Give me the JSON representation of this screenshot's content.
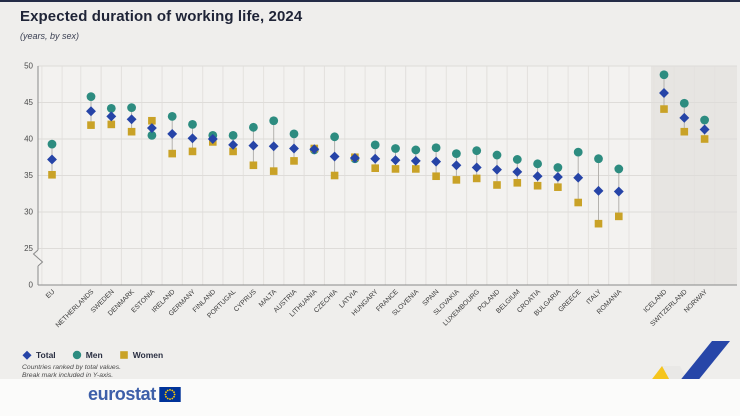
{
  "header": {
    "title": "Expected duration of working life, 2024",
    "subtitle": "(years, by sex)"
  },
  "legend": [
    {
      "key": "total",
      "label": "Total"
    },
    {
      "key": "men",
      "label": "Men"
    },
    {
      "key": "women",
      "label": "Women"
    }
  ],
  "footnotes": [
    "Countries ranked by total values.",
    "Break mark included in Y-axis."
  ],
  "branding": {
    "logo_text": "eurostat"
  },
  "colors": {
    "total": "#2644a7",
    "men": "#2d8c80",
    "women": "#c9a227",
    "grid": "#dedcd9",
    "vgrid": "#e4e2df",
    "axis": "#8a8a8a",
    "tick_text": "#4a4a4a",
    "label_text": "#3a3a3a",
    "connector": "#b4b2ae",
    "plot_bg": "#f3f2f0",
    "efta_band": "#e7e5e2"
  },
  "chart_data": {
    "type": "scatter",
    "title": "Expected duration of working life, 2024",
    "subtitle": "(years, by sex)",
    "ylabel": "years",
    "yticks": [
      0,
      25,
      30,
      35,
      40,
      45,
      50
    ],
    "ylim": [
      0,
      50
    ],
    "ylim_display": [
      25,
      50
    ],
    "axis_break": true,
    "grid": true,
    "legend_position": "bottom-left",
    "series_names": [
      "Total",
      "Men",
      "Women"
    ],
    "groups": [
      {
        "name": "EU",
        "region": "eu",
        "total": 37.2,
        "men": 39.3,
        "women": 35.1
      },
      {
        "name": "NETHERLANDS",
        "region": "member",
        "total": 43.8,
        "men": 45.8,
        "women": 41.9
      },
      {
        "name": "SWEDEN",
        "region": "member",
        "total": 43.1,
        "men": 44.2,
        "women": 42.0
      },
      {
        "name": "DENMARK",
        "region": "member",
        "total": 42.7,
        "men": 44.3,
        "women": 41.0
      },
      {
        "name": "ESTONIA",
        "region": "member",
        "total": 41.5,
        "men": 40.5,
        "women": 42.5
      },
      {
        "name": "IRELAND",
        "region": "member",
        "total": 40.7,
        "men": 43.1,
        "women": 38.0
      },
      {
        "name": "GERMANY",
        "region": "member",
        "total": 40.1,
        "men": 42.0,
        "women": 38.3
      },
      {
        "name": "FINLAND",
        "region": "member",
        "total": 40.0,
        "men": 40.5,
        "women": 39.6
      },
      {
        "name": "PORTUGAL",
        "region": "member",
        "total": 39.2,
        "men": 40.5,
        "women": 38.3
      },
      {
        "name": "CYPRUS",
        "region": "member",
        "total": 39.1,
        "men": 41.6,
        "women": 36.4
      },
      {
        "name": "MALTA",
        "region": "member",
        "total": 39.0,
        "men": 42.5,
        "women": 35.6
      },
      {
        "name": "AUSTRIA",
        "region": "member",
        "total": 38.7,
        "men": 40.7,
        "women": 37.0
      },
      {
        "name": "LITHUANIA",
        "region": "member",
        "total": 38.6,
        "men": 38.5,
        "women": 38.7
      },
      {
        "name": "CZECHIA",
        "region": "member",
        "total": 37.6,
        "men": 40.3,
        "women": 35.0
      },
      {
        "name": "LATVIA",
        "region": "member",
        "total": 37.4,
        "men": 37.3,
        "women": 37.5
      },
      {
        "name": "HUNGARY",
        "region": "member",
        "total": 37.3,
        "men": 39.2,
        "women": 36.0
      },
      {
        "name": "FRANCE",
        "region": "member",
        "total": 37.1,
        "men": 38.7,
        "women": 35.9
      },
      {
        "name": "SLOVENIA",
        "region": "member",
        "total": 37.0,
        "men": 38.5,
        "women": 35.9
      },
      {
        "name": "SPAIN",
        "region": "member",
        "total": 36.9,
        "men": 38.8,
        "women": 34.9
      },
      {
        "name": "SLOVAKIA",
        "region": "member",
        "total": 36.4,
        "men": 38.0,
        "women": 34.4
      },
      {
        "name": "LUXEMBOURG",
        "region": "member",
        "total": 36.1,
        "men": 38.4,
        "women": 34.6
      },
      {
        "name": "POLAND",
        "region": "member",
        "total": 35.8,
        "men": 37.8,
        "women": 33.7
      },
      {
        "name": "BELGIUM",
        "region": "member",
        "total": 35.5,
        "men": 37.2,
        "women": 34.0
      },
      {
        "name": "CROATIA",
        "region": "member",
        "total": 34.9,
        "men": 36.6,
        "women": 33.6
      },
      {
        "name": "BULGARIA",
        "region": "member",
        "total": 34.8,
        "men": 36.1,
        "women": 33.4
      },
      {
        "name": "GREECE",
        "region": "member",
        "total": 34.7,
        "men": 38.2,
        "women": 31.3
      },
      {
        "name": "ITALY",
        "region": "member",
        "total": 32.9,
        "men": 37.3,
        "women": 28.4
      },
      {
        "name": "ROMANIA",
        "region": "member",
        "total": 32.8,
        "men": 35.9,
        "women": 29.4
      },
      {
        "name": "ICELAND",
        "region": "efta",
        "total": 46.3,
        "men": 48.8,
        "women": 44.1
      },
      {
        "name": "SWITZERLAND",
        "region": "efta",
        "total": 42.9,
        "men": 44.9,
        "women": 41.0
      },
      {
        "name": "NORWAY",
        "region": "efta",
        "total": 41.3,
        "men": 42.6,
        "women": 40.0
      }
    ]
  }
}
